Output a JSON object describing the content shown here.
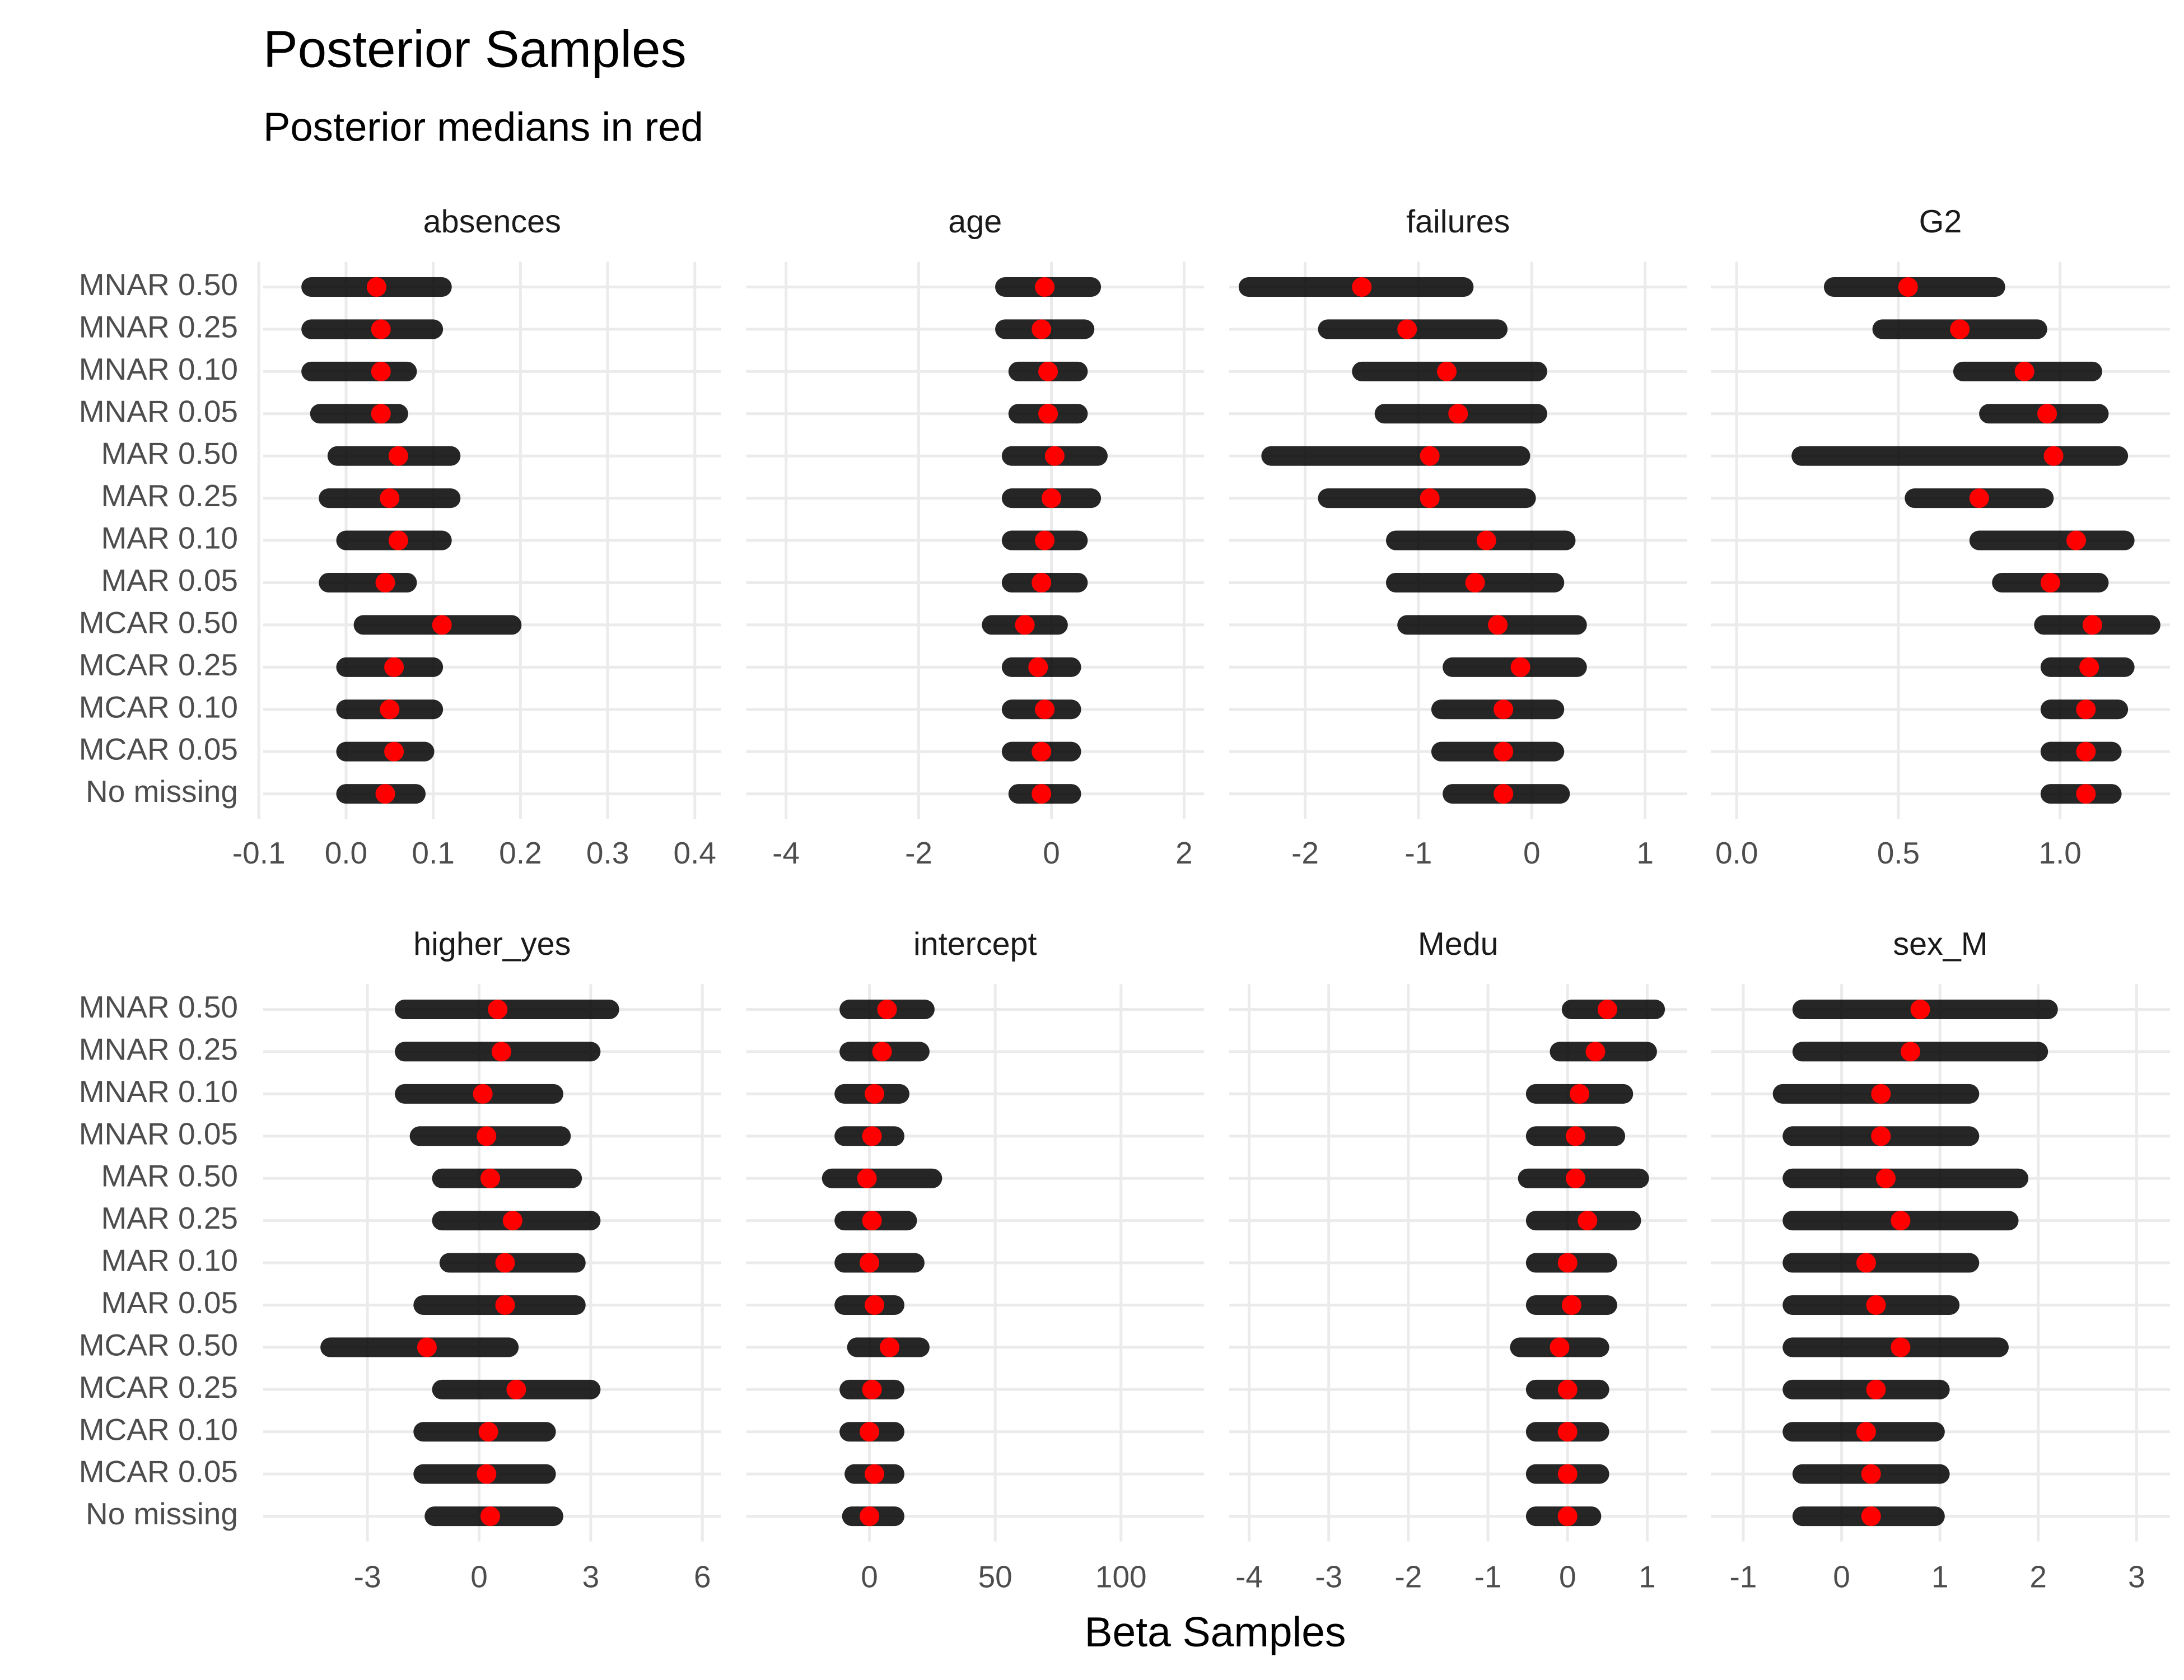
{
  "title": "Posterior Samples",
  "subtitle": "Posterior medians in red",
  "x_label": "Beta Samples",
  "categories": [
    "MNAR 0.50",
    "MNAR 0.25",
    "MNAR 0.10",
    "MNAR 0.05",
    "MAR 0.50",
    "MAR 0.25",
    "MAR 0.10",
    "MAR 0.05",
    "MCAR 0.50",
    "MCAR 0.25",
    "MCAR 0.10",
    "MCAR 0.05",
    "No missing"
  ],
  "chart_data": [
    {
      "type": "dot",
      "title": "absences",
      "xlim": [
        -0.095,
        0.43
      ],
      "xticks": [
        -0.1,
        {
          "value": 0,
          "label": "0.0"
        },
        0.1,
        0.2,
        0.3,
        0.4
      ],
      "grid": true,
      "band_color": "#000000",
      "median_color": "#ff0000",
      "lows": [
        -0.04,
        -0.04,
        -0.04,
        -0.03,
        -0.01,
        -0.02,
        0.0,
        -0.02,
        0.02,
        0.0,
        0.0,
        0.0,
        0.0
      ],
      "highs": [
        0.11,
        0.1,
        0.07,
        0.06,
        0.12,
        0.12,
        0.11,
        0.07,
        0.19,
        0.1,
        0.1,
        0.09,
        0.08
      ],
      "medians": [
        0.035,
        0.04,
        0.04,
        0.04,
        0.06,
        0.05,
        0.06,
        0.045,
        0.11,
        0.055,
        0.05,
        0.055,
        0.045
      ]
    },
    {
      "type": "dot",
      "title": "age",
      "xlim": [
        -4.6,
        2.3
      ],
      "xticks": [
        -4,
        -2,
        0,
        2
      ],
      "grid": true,
      "band_color": "#000000",
      "median_color": "#ff0000",
      "lows": [
        -0.7,
        -0.7,
        -0.5,
        -0.5,
        -0.6,
        -0.6,
        -0.6,
        -0.6,
        -0.9,
        -0.6,
        -0.6,
        -0.6,
        -0.5
      ],
      "highs": [
        0.6,
        0.5,
        0.4,
        0.4,
        0.7,
        0.6,
        0.4,
        0.4,
        0.1,
        0.3,
        0.3,
        0.3,
        0.3
      ],
      "medians": [
        -0.1,
        -0.15,
        -0.05,
        -0.05,
        0.05,
        0.0,
        -0.1,
        -0.15,
        -0.4,
        -0.2,
        -0.1,
        -0.15,
        -0.15
      ]
    },
    {
      "type": "dot",
      "title": "failures",
      "xlim": [
        -2.67,
        1.37
      ],
      "xticks": [
        -2,
        -1,
        0,
        1
      ],
      "grid": true,
      "band_color": "#000000",
      "median_color": "#ff0000",
      "lows": [
        -2.5,
        -1.8,
        -1.5,
        -1.3,
        -2.3,
        -1.8,
        -1.2,
        -1.2,
        -1.1,
        -0.7,
        -0.8,
        -0.8,
        -0.7
      ],
      "highs": [
        -0.6,
        -0.3,
        0.05,
        0.05,
        -0.1,
        -0.05,
        0.3,
        0.2,
        0.4,
        0.4,
        0.2,
        0.2,
        0.25
      ],
      "medians": [
        -1.5,
        -1.1,
        -0.75,
        -0.65,
        -0.9,
        -0.9,
        -0.4,
        -0.5,
        -0.3,
        -0.1,
        -0.25,
        -0.25,
        -0.25
      ]
    },
    {
      "type": "dot",
      "title": "G2",
      "xlim": [
        -0.08,
        1.34
      ],
      "xticks": [
        {
          "value": 0,
          "label": "0.0"
        },
        0.5,
        {
          "value": 1,
          "label": "1.0"
        }
      ],
      "grid": true,
      "band_color": "#000000",
      "median_color": "#ff0000",
      "lows": [
        0.3,
        0.45,
        0.7,
        0.78,
        0.2,
        0.55,
        0.75,
        0.82,
        0.95,
        0.97,
        0.97,
        0.97,
        0.97
      ],
      "highs": [
        0.8,
        0.93,
        1.1,
        1.12,
        1.18,
        0.95,
        1.2,
        1.12,
        1.28,
        1.2,
        1.18,
        1.16,
        1.16
      ],
      "medians": [
        0.53,
        0.69,
        0.89,
        0.96,
        0.98,
        0.75,
        1.05,
        0.97,
        1.1,
        1.09,
        1.08,
        1.08,
        1.08
      ]
    },
    {
      "type": "dot",
      "title": "higher_yes",
      "xlim": [
        -5.8,
        6.5
      ],
      "xticks": [
        -3,
        0,
        3,
        6
      ],
      "grid": true,
      "band_color": "#000000",
      "median_color": "#ff0000",
      "lows": [
        -2,
        -2,
        -2,
        -1.6,
        -1,
        -1,
        -0.8,
        -1.5,
        -4,
        -1,
        -1.5,
        -1.5,
        -1.2
      ],
      "highs": [
        3.5,
        3,
        2,
        2.2,
        2.5,
        3,
        2.6,
        2.6,
        0.8,
        3,
        1.8,
        1.8,
        2
      ],
      "medians": [
        0.5,
        0.6,
        0.1,
        0.2,
        0.3,
        0.9,
        0.7,
        0.7,
        -1.4,
        1,
        0.25,
        0.2,
        0.3
      ]
    },
    {
      "type": "dot",
      "title": "intercept",
      "xlim": [
        -49,
        133
      ],
      "xticks": [
        0,
        50,
        100
      ],
      "grid": true,
      "band_color": "#000000",
      "median_color": "#ff0000",
      "lows": [
        -8,
        -8,
        -10,
        -10,
        -15,
        -10,
        -10,
        -10,
        -5,
        -8,
        -8,
        -6,
        -7
      ],
      "highs": [
        22,
        20,
        12,
        10,
        25,
        15,
        18,
        10,
        20,
        10,
        10,
        10,
        10
      ],
      "medians": [
        7,
        5,
        2,
        1,
        -1,
        1,
        0,
        2,
        8,
        1,
        0,
        2,
        0
      ]
    },
    {
      "type": "dot",
      "title": "Medu",
      "xlim": [
        -4.25,
        1.5
      ],
      "xticks": [
        -4,
        -3,
        -2,
        -1,
        0,
        1
      ],
      "grid": true,
      "band_color": "#000000",
      "median_color": "#ff0000",
      "lows": [
        0.05,
        -0.1,
        -0.4,
        -0.4,
        -0.5,
        -0.4,
        -0.4,
        -0.4,
        -0.6,
        -0.4,
        -0.4,
        -0.4,
        -0.4
      ],
      "highs": [
        1.1,
        1.0,
        0.7,
        0.6,
        0.9,
        0.8,
        0.5,
        0.5,
        0.4,
        0.4,
        0.4,
        0.4,
        0.3
      ],
      "medians": [
        0.5,
        0.35,
        0.15,
        0.1,
        0.1,
        0.25,
        0.0,
        0.05,
        -0.1,
        0.0,
        0.0,
        0.0,
        0.0
      ]
    },
    {
      "type": "dot",
      "title": "sex_M",
      "xlim": [
        -1.33,
        3.34
      ],
      "xticks": [
        -1,
        0,
        1,
        2,
        3
      ],
      "grid": true,
      "band_color": "#000000",
      "median_color": "#ff0000",
      "lows": [
        -0.4,
        -0.4,
        -0.6,
        -0.5,
        -0.5,
        -0.5,
        -0.5,
        -0.5,
        -0.5,
        -0.5,
        -0.5,
        -0.4,
        -0.4
      ],
      "highs": [
        2.1,
        2.0,
        1.3,
        1.3,
        1.8,
        1.7,
        1.3,
        1.1,
        1.6,
        1.0,
        0.95,
        1.0,
        0.95
      ],
      "medians": [
        0.8,
        0.7,
        0.4,
        0.4,
        0.45,
        0.6,
        0.25,
        0.35,
        0.6,
        0.35,
        0.25,
        0.3,
        0.3
      ]
    }
  ]
}
